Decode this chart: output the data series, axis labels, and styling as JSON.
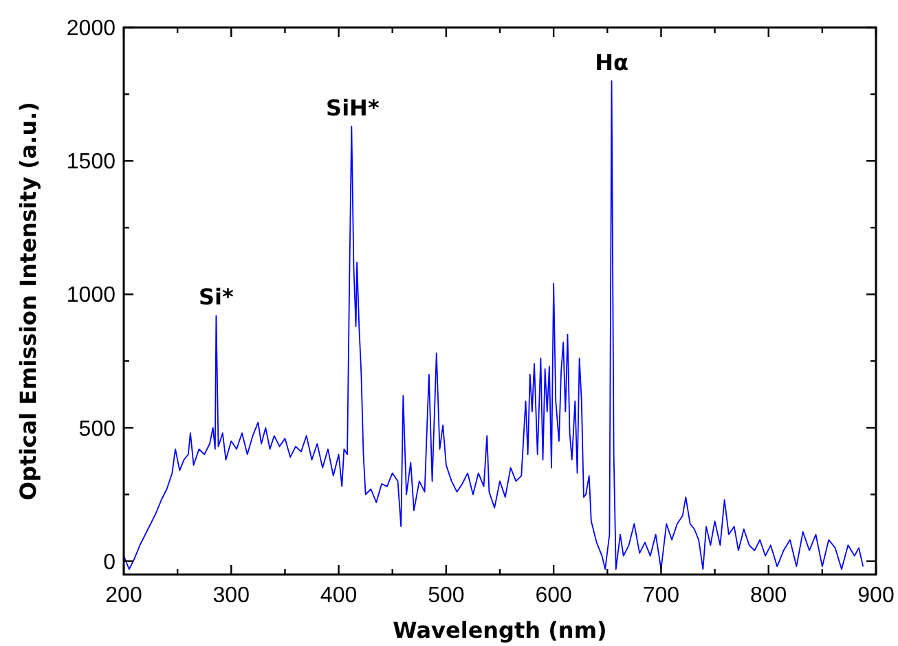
{
  "chart_data": {
    "type": "line",
    "xlabel": "Wavelength (nm)",
    "ylabel": "Optical Emission Intensity (a.u.)",
    "xlim": [
      200,
      900
    ],
    "ylim": [
      -50,
      2000
    ],
    "xticks": [
      200,
      {
        "value": 250,
        "label": null
      },
      300,
      {
        "value": 350,
        "label": null
      },
      400,
      {
        "value": 450,
        "label": null
      },
      500,
      {
        "value": 550,
        "label": null
      },
      600,
      {
        "value": 650,
        "label": null
      },
      700,
      {
        "value": 750,
        "label": null
      },
      800,
      {
        "value": 850,
        "label": null
      },
      900
    ],
    "yticks": [
      0,
      {
        "value": 250,
        "label": null
      },
      500,
      {
        "value": 750,
        "label": null
      },
      1000,
      {
        "value": 1250,
        "label": null
      },
      1500,
      {
        "value": 1750,
        "label": null
      },
      2000
    ],
    "grid": false,
    "marker": "none",
    "line_style": "solid",
    "annotations": [
      {
        "text": "Si*",
        "x": 286,
        "y": 920
      },
      {
        "text": "SiH*",
        "x": 413,
        "y": 1630
      },
      {
        "text": "Hα",
        "x": 654,
        "y": 1800
      }
    ],
    "series": [
      {
        "color": "#0000ff",
        "x": [
          200,
          205,
          210,
          215,
          220,
          225,
          230,
          235,
          240,
          245,
          248,
          252,
          256,
          260,
          262,
          265,
          270,
          275,
          280,
          283,
          285,
          286,
          288,
          292,
          295,
          300,
          305,
          310,
          315,
          320,
          325,
          328,
          332,
          336,
          340,
          345,
          350,
          355,
          360,
          365,
          370,
          375,
          380,
          385,
          390,
          395,
          400,
          403,
          405,
          408,
          410,
          412,
          414,
          416,
          417,
          419,
          421,
          423,
          425,
          430,
          435,
          440,
          445,
          450,
          455,
          458,
          460,
          463,
          467,
          470,
          475,
          480,
          484,
          487,
          491,
          494,
          497,
          500,
          505,
          510,
          515,
          520,
          525,
          530,
          535,
          538,
          540,
          545,
          550,
          555,
          560,
          565,
          570,
          574,
          576,
          578,
          580,
          582,
          585,
          588,
          590,
          592,
          594,
          596,
          598,
          600,
          602,
          605,
          607,
          609,
          611,
          613,
          615,
          617,
          620,
          622,
          624,
          626,
          628,
          630,
          633,
          635,
          640,
          645,
          648,
          652,
          654,
          656,
          658,
          662,
          665,
          670,
          675,
          680,
          685,
          690,
          695,
          700,
          705,
          710,
          715,
          720,
          723,
          727,
          731,
          735,
          739,
          742,
          746,
          750,
          755,
          759,
          763,
          768,
          772,
          777,
          782,
          787,
          792,
          797,
          802,
          808,
          814,
          820,
          826,
          832,
          838,
          844,
          850,
          856,
          862,
          868,
          874,
          880,
          884,
          888
        ],
        "values": [
          20,
          -30,
          10,
          60,
          100,
          140,
          180,
          230,
          270,
          330,
          420,
          340,
          380,
          400,
          480,
          360,
          420,
          400,
          440,
          500,
          420,
          920,
          430,
          480,
          380,
          450,
          420,
          480,
          400,
          470,
          520,
          440,
          500,
          420,
          470,
          430,
          460,
          390,
          430,
          410,
          470,
          380,
          440,
          350,
          420,
          320,
          400,
          280,
          420,
          400,
          1050,
          1630,
          1100,
          880,
          1120,
          880,
          700,
          400,
          250,
          270,
          220,
          290,
          280,
          330,
          300,
          130,
          620,
          250,
          370,
          190,
          300,
          260,
          700,
          300,
          780,
          420,
          510,
          360,
          300,
          260,
          290,
          330,
          250,
          330,
          280,
          470,
          260,
          200,
          300,
          240,
          350,
          300,
          320,
          600,
          400,
          700,
          560,
          740,
          400,
          760,
          380,
          720,
          560,
          730,
          350,
          1040,
          600,
          450,
          710,
          820,
          560,
          850,
          480,
          380,
          600,
          330,
          760,
          600,
          240,
          250,
          320,
          150,
          70,
          20,
          -30,
          100,
          1800,
          400,
          -30,
          100,
          20,
          60,
          140,
          30,
          70,
          20,
          100,
          -30,
          140,
          80,
          140,
          170,
          240,
          140,
          120,
          80,
          -30,
          130,
          60,
          150,
          60,
          230,
          100,
          130,
          40,
          120,
          60,
          40,
          80,
          20,
          60,
          -20,
          40,
          80,
          -20,
          110,
          40,
          100,
          -20,
          80,
          50,
          -30,
          60,
          20,
          50,
          -20
        ]
      }
    ]
  }
}
